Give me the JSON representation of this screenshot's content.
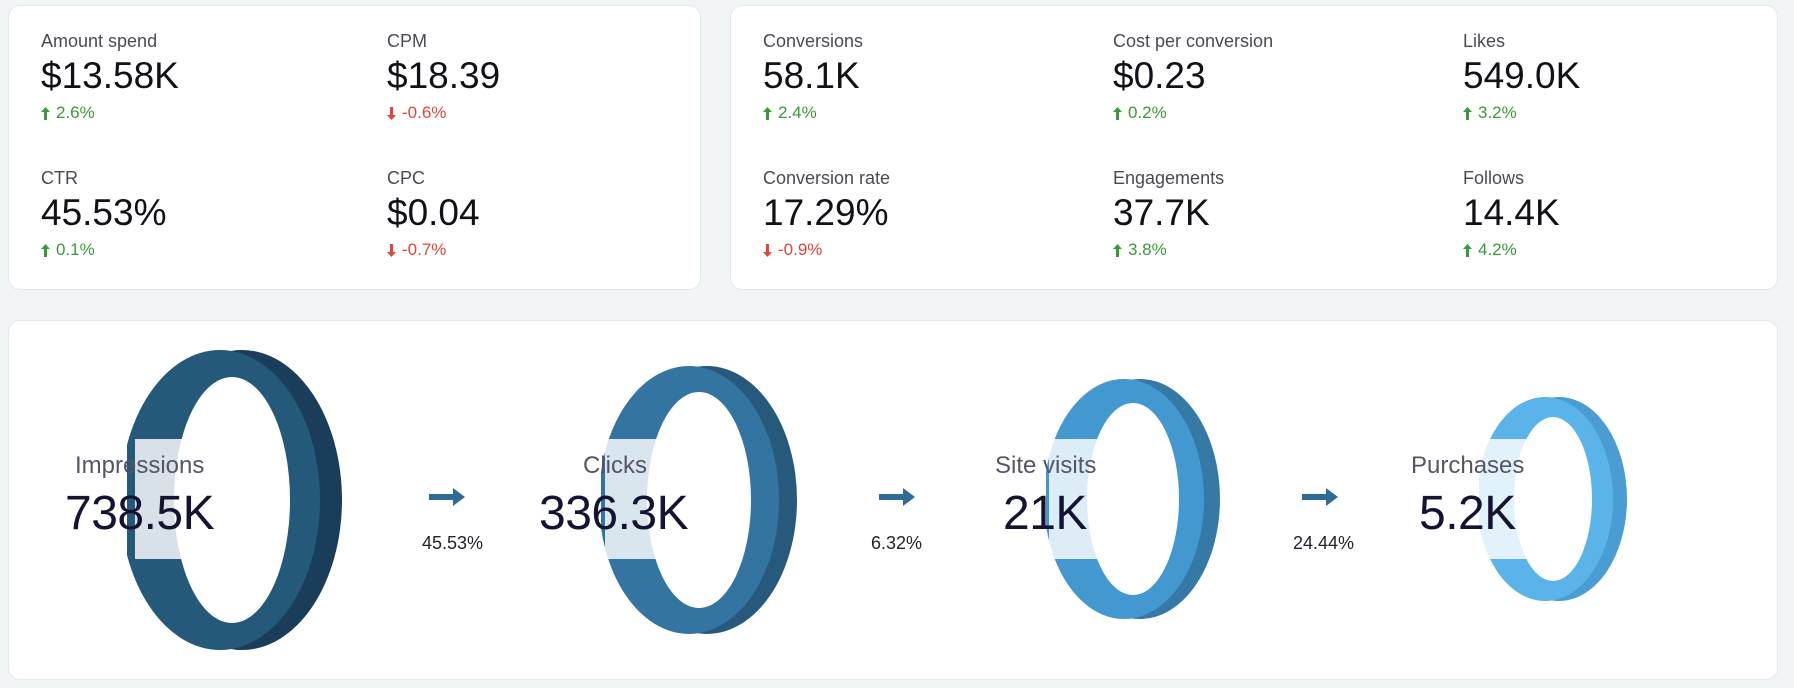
{
  "left_card": {
    "kpis": [
      {
        "label": "Amount spend",
        "value": "$13.58K",
        "delta": "2.6%",
        "direction": "up"
      },
      {
        "label": "CPM",
        "value": "$18.39",
        "delta": "-0.6%",
        "direction": "down"
      },
      {
        "label": "CTR",
        "value": "45.53%",
        "delta": "0.1%",
        "direction": "up"
      },
      {
        "label": "CPC",
        "value": "$0.04",
        "delta": "-0.7%",
        "direction": "down"
      }
    ]
  },
  "right_card": {
    "kpis": [
      {
        "label": "Conversions",
        "value": "58.1K",
        "delta": "2.4%",
        "direction": "up"
      },
      {
        "label": "Cost per conversion",
        "value": "$0.23",
        "delta": "0.2%",
        "direction": "up"
      },
      {
        "label": "Likes",
        "value": "549.0K",
        "delta": "3.2%",
        "direction": "up"
      },
      {
        "label": "Conversion rate",
        "value": "17.29%",
        "delta": "-0.9%",
        "direction": "down"
      },
      {
        "label": "Engagements",
        "value": "37.7K",
        "delta": "3.8%",
        "direction": "up"
      },
      {
        "label": "Follows",
        "value": "14.4K",
        "delta": "4.2%",
        "direction": "up"
      }
    ]
  },
  "funnel": {
    "stages": [
      {
        "label": "Impressions",
        "value": "738.5K"
      },
      {
        "label": "Clicks",
        "value": "336.3K"
      },
      {
        "label": "Site visits",
        "value": "21K"
      },
      {
        "label": "Purchases",
        "value": "5.2K"
      }
    ],
    "conversion_rates": [
      "45.53%",
      "6.32%",
      "24.44%"
    ]
  },
  "colors": {
    "up": "#3a9a3a",
    "down": "#e0453a",
    "ring_1": "#25597a",
    "ring_2": "#3374a0",
    "ring_3": "#4399cf",
    "ring_4": "#5ab4ea",
    "arrow": "#2f6c95"
  },
  "icons": {
    "up": "arrow-up-icon",
    "down": "arrow-down-icon",
    "flow": "arrow-right-icon"
  }
}
